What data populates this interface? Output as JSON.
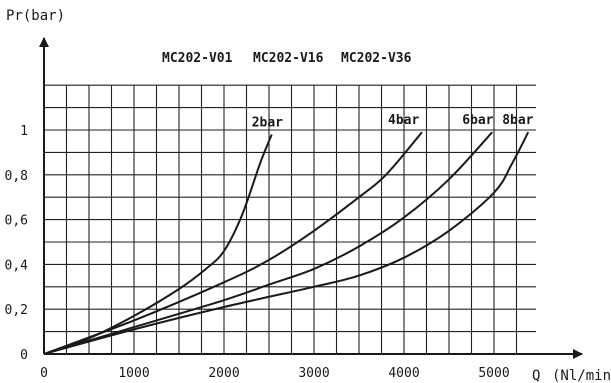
{
  "chart_data": {
    "type": "line",
    "title": "",
    "models": [
      "MC202-V01",
      "MC202-V16",
      "MC202-V36"
    ],
    "xlabel": "Q",
    "xunit": "(Nl/min)",
    "ylabel": "Pr",
    "yunit": "(bar)",
    "xlim": [
      0,
      5500
    ],
    "ylim": [
      0,
      1.0
    ],
    "x_ticks": [
      0,
      1000,
      2000,
      3000,
      4000,
      5000
    ],
    "x_tick_labels": [
      "0",
      "1000",
      "2000",
      "3000",
      "4000",
      "5000"
    ],
    "y_ticks": [
      0,
      0.2,
      0.4,
      0.6,
      0.8,
      1.0
    ],
    "y_tick_labels": [
      "0",
      "0,2",
      "0,4",
      "0,6",
      "0,8",
      "1"
    ],
    "grid": true,
    "series": [
      {
        "name": "2bar",
        "points": [
          [
            0,
            0
          ],
          [
            500,
            0.07
          ],
          [
            1000,
            0.17
          ],
          [
            1500,
            0.29
          ],
          [
            1800,
            0.38
          ],
          [
            2000,
            0.46
          ],
          [
            2200,
            0.62
          ],
          [
            2400,
            0.85
          ],
          [
            2530,
            0.98
          ]
        ]
      },
      {
        "name": "4bar",
        "points": [
          [
            0,
            0
          ],
          [
            1000,
            0.15
          ],
          [
            2000,
            0.32
          ],
          [
            2500,
            0.42
          ],
          [
            3000,
            0.55
          ],
          [
            3500,
            0.7
          ],
          [
            3800,
            0.8
          ],
          [
            4200,
            0.99
          ]
        ]
      },
      {
        "name": "6bar",
        "points": [
          [
            0,
            0
          ],
          [
            1000,
            0.12
          ],
          [
            2000,
            0.24
          ],
          [
            2500,
            0.31
          ],
          [
            3000,
            0.38
          ],
          [
            3500,
            0.48
          ],
          [
            4000,
            0.61
          ],
          [
            4500,
            0.78
          ],
          [
            4980,
            0.99
          ]
        ]
      },
      {
        "name": "8bar",
        "points": [
          [
            0,
            0
          ],
          [
            1000,
            0.11
          ],
          [
            2000,
            0.21
          ],
          [
            3000,
            0.3
          ],
          [
            3500,
            0.35
          ],
          [
            4000,
            0.43
          ],
          [
            4500,
            0.55
          ],
          [
            5000,
            0.72
          ],
          [
            5200,
            0.85
          ],
          [
            5380,
            0.99
          ]
        ]
      }
    ]
  }
}
